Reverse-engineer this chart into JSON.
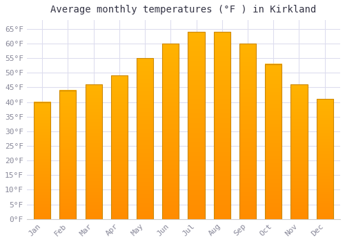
{
  "title": "Average monthly temperatures (°F ) in Kirkland",
  "months": [
    "Jan",
    "Feb",
    "Mar",
    "Apr",
    "May",
    "Jun",
    "Jul",
    "Aug",
    "Sep",
    "Oct",
    "Nov",
    "Dec"
  ],
  "values": [
    40,
    44,
    46,
    49,
    55,
    60,
    64,
    64,
    60,
    53,
    46,
    41
  ],
  "bar_color_top": "#FFB300",
  "bar_color_bottom": "#FF8C00",
  "bar_edge_color": "#CC8800",
  "ylim": [
    0,
    68
  ],
  "yticks": [
    0,
    5,
    10,
    15,
    20,
    25,
    30,
    35,
    40,
    45,
    50,
    55,
    60,
    65
  ],
  "ytick_labels": [
    "0°F",
    "5°F",
    "10°F",
    "15°F",
    "20°F",
    "25°F",
    "30°F",
    "35°F",
    "40°F",
    "45°F",
    "50°F",
    "55°F",
    "60°F",
    "65°F"
  ],
  "background_color": "#ffffff",
  "grid_color": "#ddddee",
  "title_fontsize": 10,
  "tick_fontsize": 8,
  "font_family": "monospace",
  "tick_color": "#888899"
}
